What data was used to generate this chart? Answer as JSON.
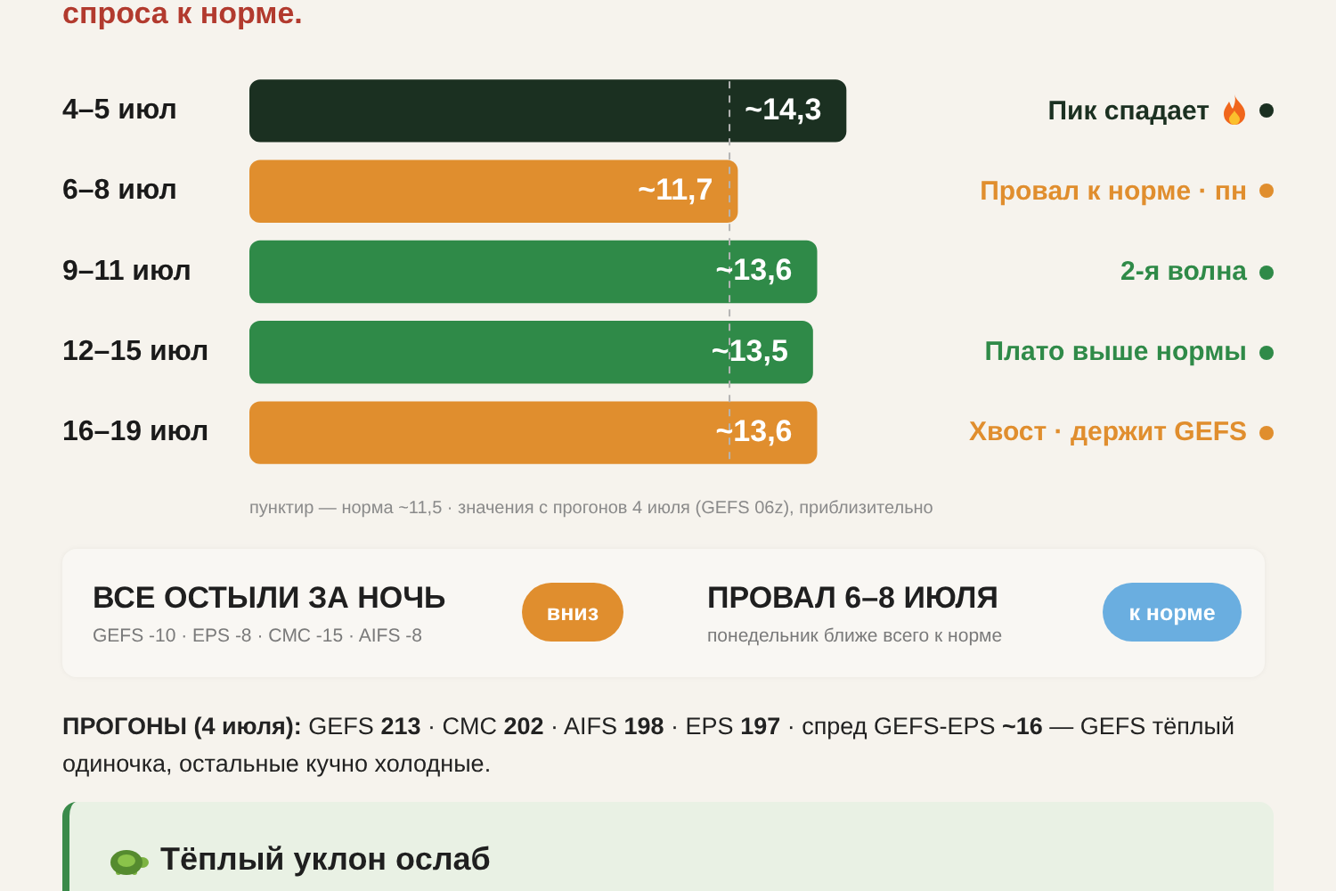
{
  "chart_data": {
    "type": "bar",
    "orientation": "horizontal",
    "subtitle": "спроса к норме.",
    "categories": [
      "4–5 июл",
      "6–8 июл",
      "9–11 июл",
      "12–15 июл",
      "16–19 июл"
    ],
    "values": [
      14.3,
      11.7,
      13.6,
      13.5,
      13.6
    ],
    "colors": [
      "#1b3021",
      "#e08e2e",
      "#2f8a48",
      "#2f8a48",
      "#e08e2e"
    ],
    "value_labels": [
      "~14,3",
      "~11,7",
      "~13,6",
      "~13,5",
      "~13,6"
    ],
    "tick_labels": "y",
    "ref_lines": [
      {
        "axis": "x",
        "value": 11.5,
        "color": "#b4b4b4",
        "line_style": "dashed"
      }
    ],
    "annotations": [
      "Пик спадает",
      "Провал к норме · пн",
      "2-я волна",
      "Плато выше нормы",
      "Хвост · держит GEFS",
      "пунктир — норма ~11,5 · значения с прогонов 4 июля (GEFS 06z), приблизительно",
      "ВСЕ ОСТЫЛИ ЗА НОЧЬ",
      "GEFS -10 · EPS -8 · CMC -15 · AIFS -8",
      "вниз",
      "ПРОВАЛ 6–8 ИЮЛЯ",
      "понедельник ближе всего к норме",
      "к норме",
      "ПРОГОНЫ (4 июля): GEFS 213 · CMC 202 · AIFS 198 · EPS 197 · спред GEFS-EPS ~16 — GEFS тёплый одиночка, остальные кучно холодные.",
      "Тёплый уклон ослаб"
    ]
  }
}
